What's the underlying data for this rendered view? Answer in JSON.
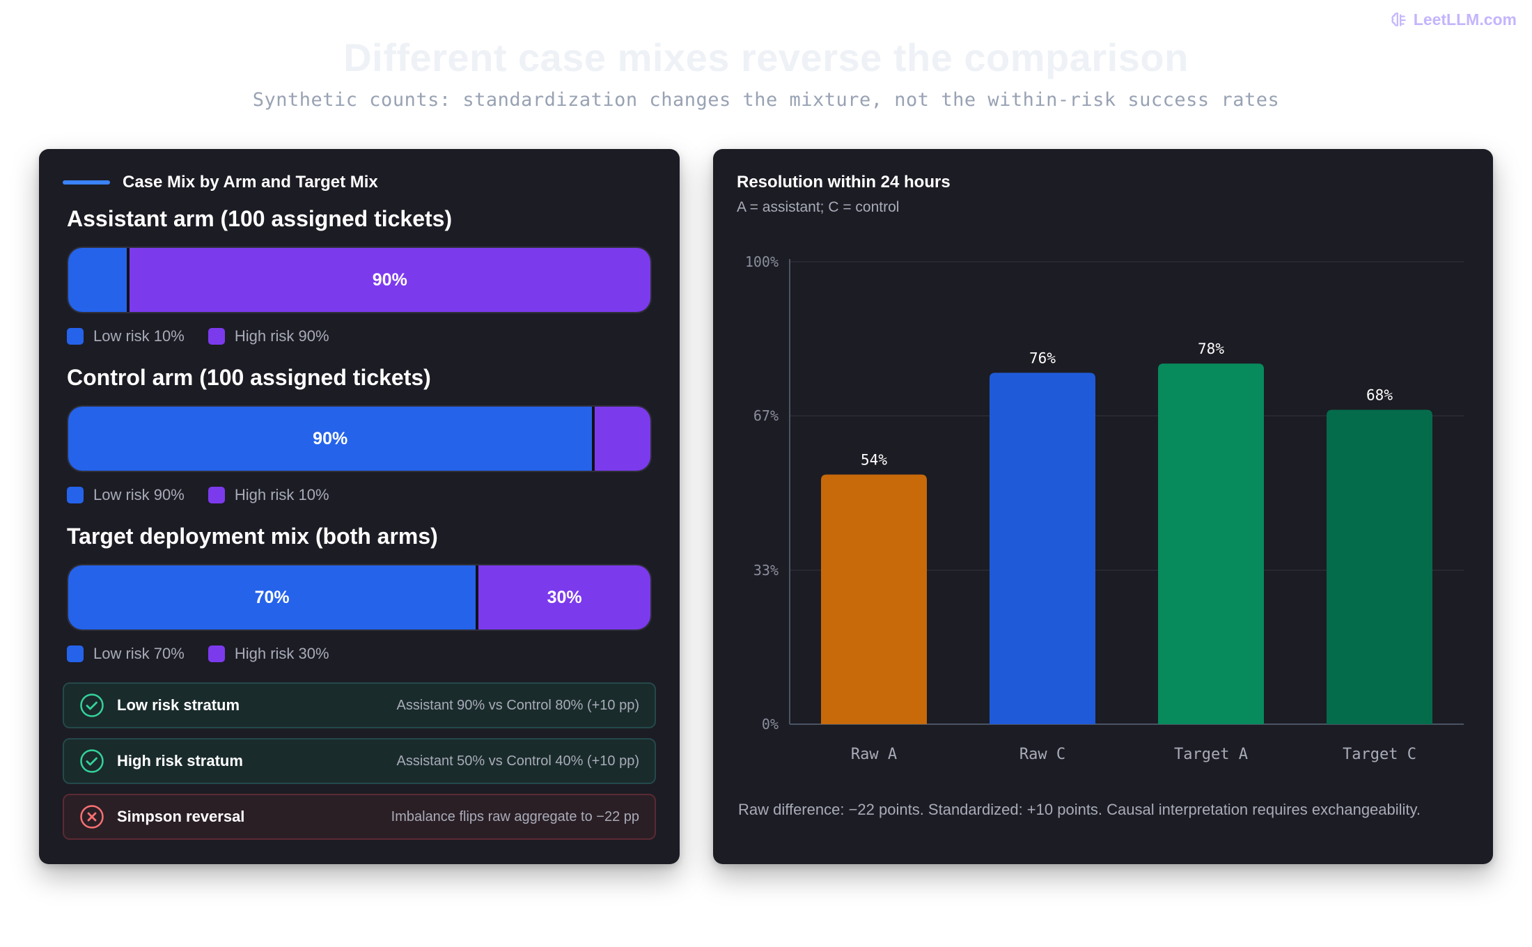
{
  "brand": {
    "name": "LeetLLM.com",
    "icon": "brain-icon"
  },
  "header": {
    "title": "Different case mixes reverse the comparison",
    "subtitle": "Synthetic counts: standardization changes the mixture, not the within-risk success rates"
  },
  "left_panel": {
    "heading": "Case Mix by Arm and Target Mix",
    "sections": [
      {
        "title": "Assistant arm (100 assigned tickets)",
        "low_pct": 10,
        "high_pct": 90,
        "low_bar_label": "",
        "high_bar_label": "90%",
        "legend_low": "Low risk 10%",
        "legend_high": "High risk 90%"
      },
      {
        "title": "Control arm (100 assigned tickets)",
        "low_pct": 90,
        "high_pct": 10,
        "low_bar_label": "90%",
        "high_bar_label": "",
        "legend_low": "Low risk 90%",
        "legend_high": "High risk 10%"
      },
      {
        "title": "Target deployment mix (both arms)",
        "low_pct": 70,
        "high_pct": 30,
        "low_bar_label": "70%",
        "high_bar_label": "30%",
        "legend_low": "Low risk 70%",
        "legend_high": "High risk 30%"
      }
    ],
    "strata": [
      {
        "label": "Low risk stratum",
        "detail": "Assistant 90% vs Control 80% (+10 pp)",
        "status": "ok",
        "icon": "check-circle-icon"
      },
      {
        "label": "High risk stratum",
        "detail": "Assistant 50% vs Control 40% (+10 pp)",
        "status": "ok",
        "icon": "check-circle-icon"
      },
      {
        "label": "Simpson reversal",
        "detail": "Imbalance flips raw aggregate to −22 pp",
        "status": "warn",
        "icon": "x-circle-icon"
      }
    ],
    "colors": {
      "low": "#2563eb",
      "high": "#7c3aed",
      "ok": "#34d399",
      "warn": "#f87171"
    }
  },
  "right_panel": {
    "footer": "Raw difference: −22 points. Standardized: +10 points. Causal interpretation requires exchangeability."
  },
  "chart_data": {
    "type": "bar",
    "title": "Resolution within 24 hours",
    "subtitle": "A = assistant; C = control",
    "categories": [
      "Raw A",
      "Raw C",
      "Target A",
      "Target C"
    ],
    "values": [
      54,
      76,
      78,
      68
    ],
    "value_labels": [
      "54%",
      "76%",
      "78%",
      "68%"
    ],
    "colors": [
      "#c8690a",
      "#1f5bd9",
      "#078a5c",
      "#046c4b"
    ],
    "ylim": [
      0,
      100
    ],
    "yticks": [
      0,
      33.3,
      66.7,
      100
    ],
    "ytick_labels": [
      "0%",
      "33%",
      "67%",
      "100%"
    ],
    "grid": true,
    "xlabel": "",
    "ylabel": ""
  }
}
